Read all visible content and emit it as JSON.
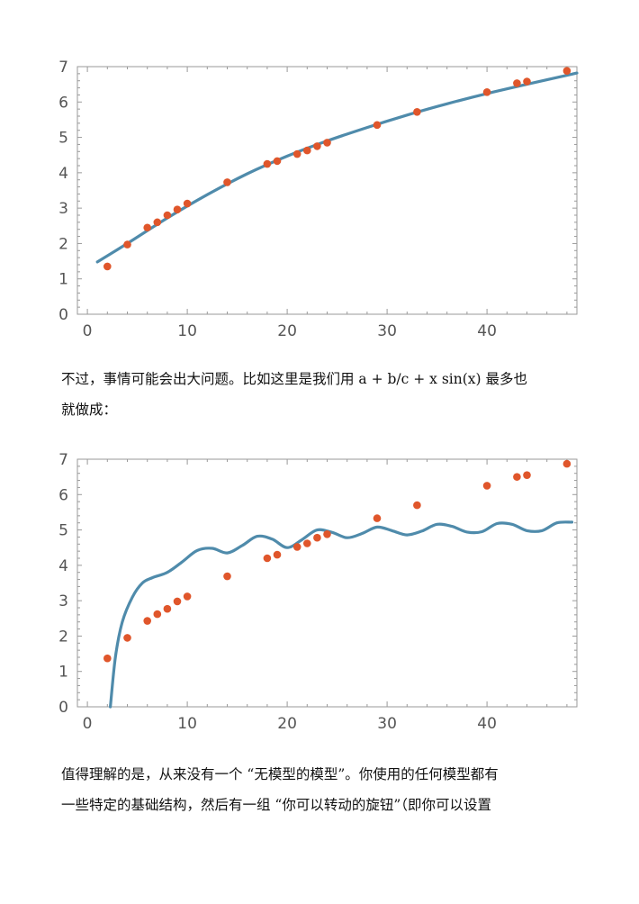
{
  "colors": {
    "curve": "#4f8bab",
    "points": "#e0562b",
    "frame": "#9a9a9a",
    "tick_text": "#555555"
  },
  "paragraph1": {
    "line1": "不过，事情可能会出大问题。比如这里是我们用 a + b/c + x sin(x) 最多也",
    "line2": "就做成："
  },
  "paragraph2": {
    "line1": "值得理解的是，从来没有一个 “无模型的模型”。你使用的任何模型都有",
    "line2": "一些特定的基础结构，然后有一组 “你可以转动的旋钮”（即你可以设置"
  },
  "chart_data": [
    {
      "type": "scatter",
      "title": "",
      "xlabel": "",
      "ylabel": "",
      "xlim": [
        -1,
        49
      ],
      "ylim": [
        0,
        7
      ],
      "xticks": [
        "0",
        "10",
        "20",
        "30",
        "40"
      ],
      "xtick_values": [
        0,
        10,
        20,
        30,
        40
      ],
      "yticks": [
        "0",
        "1",
        "2",
        "3",
        "4",
        "5",
        "6",
        "7"
      ],
      "ytick_values": [
        0,
        1,
        2,
        3,
        4,
        5,
        6,
        7
      ],
      "grid": false,
      "points": {
        "x": [
          2,
          4,
          6,
          7,
          8,
          9,
          10,
          14,
          18,
          19,
          21,
          22,
          23,
          24,
          29,
          33,
          40,
          43,
          44,
          48
        ],
        "y": [
          1.35,
          1.97,
          2.45,
          2.6,
          2.8,
          2.96,
          3.13,
          3.73,
          4.25,
          4.33,
          4.53,
          4.63,
          4.75,
          4.85,
          5.35,
          5.72,
          6.28,
          6.53,
          6.58,
          6.88
        ]
      },
      "fit_curve": {
        "x": [
          1,
          4,
          8,
          12,
          16,
          20,
          24,
          28,
          32,
          36,
          40,
          44,
          49
        ],
        "y": [
          1.48,
          2.0,
          2.72,
          3.38,
          3.97,
          4.47,
          4.9,
          5.28,
          5.63,
          5.95,
          6.24,
          6.5,
          6.82
        ]
      }
    },
    {
      "type": "scatter",
      "title": "",
      "xlabel": "",
      "ylabel": "",
      "xlim": [
        -1,
        49
      ],
      "ylim": [
        0,
        7
      ],
      "xticks": [
        "0",
        "10",
        "20",
        "30",
        "40"
      ],
      "xtick_values": [
        0,
        10,
        20,
        30,
        40
      ],
      "yticks": [
        "0",
        "1",
        "2",
        "3",
        "4",
        "5",
        "6",
        "7"
      ],
      "ytick_values": [
        0,
        1,
        2,
        3,
        4,
        5,
        6,
        7
      ],
      "grid": false,
      "points": {
        "x": [
          2,
          4,
          6,
          7,
          8,
          9,
          10,
          14,
          18,
          19,
          21,
          22,
          23,
          24,
          29,
          33,
          40,
          43,
          44,
          48
        ],
        "y": [
          1.37,
          1.95,
          2.43,
          2.62,
          2.77,
          2.98,
          3.12,
          3.69,
          4.2,
          4.3,
          4.52,
          4.62,
          4.78,
          4.88,
          5.33,
          5.7,
          6.25,
          6.5,
          6.55,
          6.87
        ]
      },
      "fit_curve": {
        "x": [
          2.3,
          2.8,
          3.5,
          4.5,
          5.5,
          6.5,
          8,
          9.5,
          11,
          12.5,
          14,
          15.5,
          17,
          18.5,
          20,
          21.5,
          23,
          24.5,
          26,
          27.5,
          29,
          30.5,
          32,
          33.5,
          35,
          36.5,
          38,
          39.5,
          41,
          42.5,
          44,
          45.5,
          47,
          48.5
        ],
        "y": [
          0.0,
          1.4,
          2.4,
          3.1,
          3.5,
          3.65,
          3.8,
          4.1,
          4.42,
          4.48,
          4.35,
          4.56,
          4.82,
          4.74,
          4.5,
          4.73,
          5.0,
          4.93,
          4.78,
          4.9,
          5.08,
          4.98,
          4.86,
          4.97,
          5.16,
          5.1,
          4.94,
          4.95,
          5.18,
          5.16,
          4.98,
          4.98,
          5.2,
          5.22
        ]
      }
    }
  ]
}
